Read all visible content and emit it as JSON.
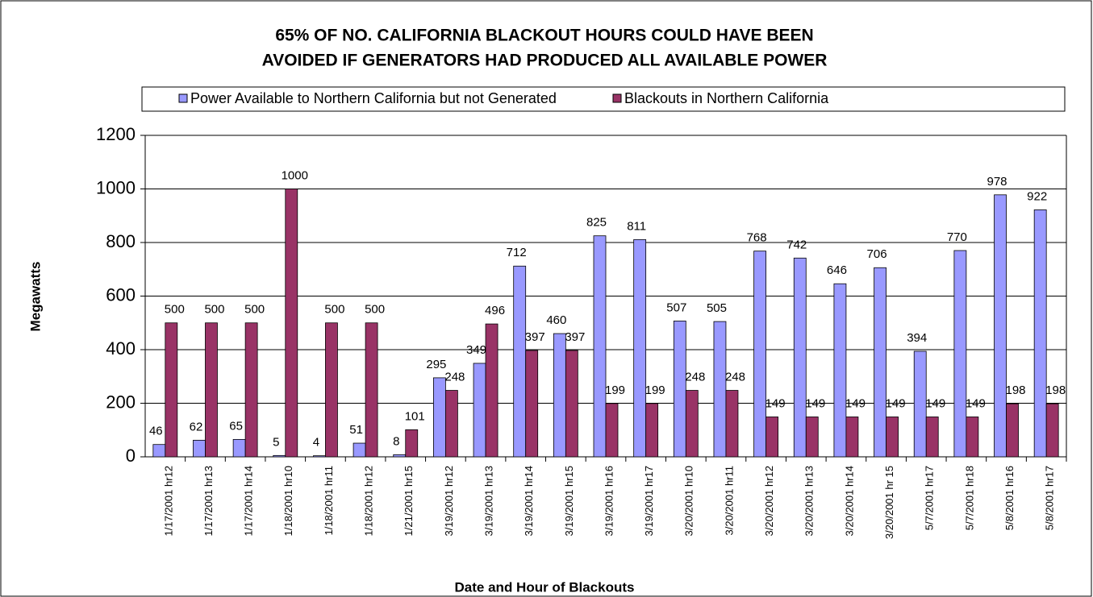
{
  "chart_data": {
    "type": "bar",
    "title": [
      "65% OF NO. CALIFORNIA BLACKOUT HOURS COULD HAVE BEEN",
      "AVOIDED IF GENERATORS HAD PRODUCED ALL AVAILABLE POWER"
    ],
    "x_label": "Date and Hour of Blackouts",
    "y_label": "Megawatts",
    "categories": [
      "1/17/2001 hr12",
      "1/17/2001 hr13",
      "1/17/2001 hr14",
      "1/18/2001 hr10",
      "1/18/2001 hr11",
      "1/18/2001 hr12",
      "1/21/2001 hr15",
      "3/19/2001 hr12",
      "3/19/2001 hr13",
      "3/19/2001 hr14",
      "3/19/2001 hr15",
      "3/19/2001 hr16",
      "3/19/2001 hr17",
      "3/20/2001 hr10",
      "3/20/2001 hr11",
      "3/20/2001 hr12",
      "3/20/2001 hr13",
      "3/20/2001 hr14",
      "3/20/2001 hr 15",
      "5/7/2001 hr17",
      "5/7/2001 hr18",
      "5/8/2001 hr16",
      "5/8/2001 hr17"
    ],
    "series": [
      {
        "name": "Power Available to Northern California but not Generated",
        "color": "#9999ff",
        "values": [
          46,
          62,
          65,
          5,
          4,
          51,
          8,
          295,
          349,
          712,
          460,
          825,
          811,
          507,
          505,
          768,
          742,
          646,
          706,
          394,
          770,
          978,
          922
        ]
      },
      {
        "name": "Blackouts in Northern California",
        "color": "#993366",
        "values": [
          500,
          500,
          500,
          1000,
          500,
          500,
          101,
          248,
          496,
          397,
          397,
          199,
          199,
          248,
          248,
          149,
          149,
          149,
          149,
          149,
          149,
          198,
          198
        ]
      }
    ],
    "ylim": [
      0,
      1200
    ],
    "yticks": [
      0,
      200,
      400,
      600,
      800,
      1000,
      1200
    ],
    "grid": true,
    "legend": "top"
  }
}
